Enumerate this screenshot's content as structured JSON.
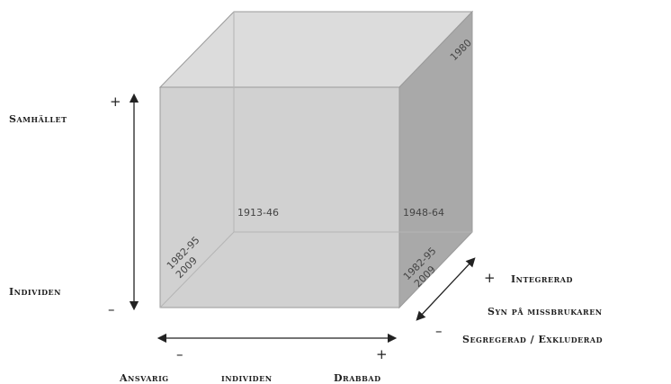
{
  "vertical_axis": {
    "top_label": "Samhället",
    "bottom_label": "Individen",
    "top_sign": "+",
    "bottom_sign": "–"
  },
  "horizontal_axis": {
    "left_label": "Ansvarig",
    "middle_label": "individen",
    "right_label": "Drabbad",
    "left_sign": "–",
    "right_sign": "+"
  },
  "depth_axis": {
    "top_label": "Integrerad",
    "middle_label": "Syn på missbrukaren",
    "bottom_label": "Segregerad / Exkluderad",
    "top_sign": "+",
    "bottom_sign": "–"
  },
  "years": {
    "back_top_right": "1980",
    "back_center": "1913-46",
    "right_face": "1948-64",
    "front_left_line1": "1982-95",
    "front_left_line2": "2009",
    "front_right_line1": "1982-95",
    "front_right_line2": "2009"
  },
  "colors": {
    "front_face": "#cdcdcd",
    "top_face": "#dcdcdc",
    "right_face": "#a9a9a9",
    "edges": "#9a9a9a"
  }
}
